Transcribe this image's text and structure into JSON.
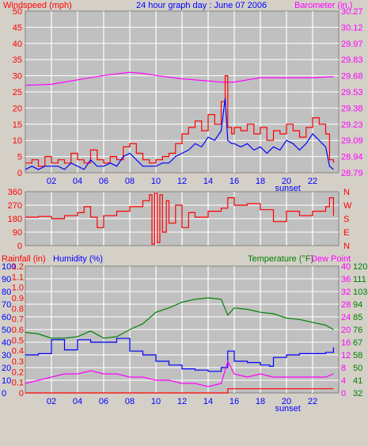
{
  "colors": {
    "plot_bg": "#c0c0c0",
    "frame_bg": "#d4d0c8",
    "grid": "#ffffff",
    "wind": "#ff0000",
    "wind_avg": "#0000ff",
    "barometer": "#ff00ff",
    "direction": "#ff0000",
    "temperature": "#008000",
    "humidity": "#0000ff",
    "dewpoint": "#ff00ff",
    "rainfall": "#ff0000",
    "title": "#0000ff",
    "sunset": "#0000ff"
  },
  "header": {
    "wind_label": "Windspeed (mph)",
    "title": "24 hour graph day : June 07 2006",
    "baro_label": "Barometer (in.)"
  },
  "bottom_header": {
    "rain_label": "Rainfall (in)",
    "humidity_label": "Humidity (%)",
    "temp_label": "Temperature (°F)",
    "dew_label": "Dew Point"
  },
  "x_ticks": [
    "02",
    "04",
    "06",
    "08",
    "10",
    "12",
    "14",
    "16",
    "18",
    "20",
    "22"
  ],
  "sunset_label": "sunset",
  "chart_data": [
    {
      "type": "line",
      "id": "wind-baro",
      "x_unit": "hour",
      "xlim": [
        0,
        24
      ],
      "yleft": {
        "label": "Windspeed (mph)",
        "ticks": [
          "50",
          "45",
          "40",
          "35",
          "30",
          "25",
          "20",
          "15",
          "10",
          "5",
          "0"
        ],
        "ylim": [
          0,
          50
        ]
      },
      "yright": {
        "label": "Barometer (in.)",
        "ticks": [
          "30.27",
          "30.12",
          "29.97",
          "29.83",
          "29.68",
          "29.53",
          "29.38",
          "29.23",
          "29.09",
          "28.94",
          "28.79"
        ],
        "ylim": [
          28.79,
          30.27
        ]
      },
      "series": [
        {
          "name": "Windspeed (mph)",
          "axis": "left",
          "x": [
            0,
            0.5,
            1,
            1.5,
            2,
            2.5,
            3,
            3.5,
            4,
            4.5,
            5,
            5.5,
            6,
            6.5,
            7,
            7.5,
            8,
            8.5,
            9,
            9.5,
            10,
            10.5,
            11,
            11.5,
            12,
            12.5,
            13,
            13.5,
            14,
            14.5,
            15,
            15.3,
            15.5,
            15.8,
            16,
            16.5,
            17,
            17.5,
            18,
            18.5,
            19,
            19.5,
            20,
            20.5,
            21,
            21.5,
            22,
            22.5,
            23,
            23.3,
            23.6
          ],
          "values": [
            3,
            4,
            2,
            5,
            3,
            4,
            3,
            6,
            4,
            3,
            7,
            4,
            3,
            5,
            4,
            8,
            9,
            6,
            4,
            3,
            4,
            5,
            6,
            9,
            12,
            14,
            16,
            13,
            18,
            15,
            22,
            30,
            14,
            12,
            14,
            13,
            15,
            12,
            14,
            10,
            13,
            12,
            15,
            13,
            11,
            14,
            17,
            15,
            12,
            4,
            3
          ]
        },
        {
          "name": "Wind average",
          "axis": "left",
          "x": [
            0,
            0.5,
            1,
            1.5,
            2,
            2.5,
            3,
            3.5,
            4,
            4.5,
            5,
            5.5,
            6,
            6.5,
            7,
            7.5,
            8,
            8.5,
            9,
            9.5,
            10,
            10.5,
            11,
            11.5,
            12,
            12.5,
            13,
            13.5,
            14,
            14.5,
            15,
            15.3,
            15.5,
            15.8,
            16,
            16.5,
            17,
            17.5,
            18,
            18.5,
            19,
            19.5,
            20,
            20.5,
            21,
            21.5,
            22,
            22.5,
            23,
            23.3,
            23.6
          ],
          "values": [
            1,
            2,
            1,
            2,
            2,
            2,
            1,
            3,
            2,
            1,
            4,
            2,
            2,
            3,
            2,
            5,
            6,
            4,
            2,
            2,
            2,
            3,
            3,
            5,
            6,
            7,
            9,
            8,
            11,
            10,
            13,
            23,
            10,
            9,
            9,
            8,
            9,
            7,
            8,
            6,
            8,
            7,
            10,
            9,
            7,
            9,
            12,
            10,
            8,
            2,
            1
          ]
        },
        {
          "name": "Barometer (in.)",
          "axis": "right",
          "x": [
            0,
            2,
            4,
            6,
            8,
            9,
            10,
            12,
            14,
            15,
            16,
            17,
            18,
            20,
            22,
            23.6
          ],
          "values": [
            29.59,
            29.6,
            29.64,
            29.68,
            29.71,
            29.7,
            29.68,
            29.65,
            29.63,
            29.62,
            29.62,
            29.64,
            29.66,
            29.66,
            29.66,
            29.67
          ]
        }
      ]
    },
    {
      "type": "line",
      "id": "direction",
      "x_unit": "hour",
      "xlim": [
        0,
        24
      ],
      "yleft": {
        "ticks": [
          "360",
          "270",
          "180",
          "90",
          "0"
        ],
        "ylim": [
          0,
          360
        ]
      },
      "yright": {
        "ticks": [
          "N",
          "W",
          "S",
          "E",
          "N"
        ]
      },
      "series": [
        {
          "name": "Wind direction",
          "axis": "left",
          "x": [
            0,
            1,
            2,
            3,
            4,
            4.5,
            5,
            5.5,
            6,
            7,
            8,
            9,
            9.5,
            9.7,
            9.9,
            10.1,
            10.3,
            10.5,
            10.8,
            11,
            11.5,
            12,
            12.5,
            13,
            14,
            15,
            15.5,
            16,
            17,
            18,
            19,
            20,
            21,
            22,
            23,
            23.3,
            23.6
          ],
          "values": [
            190,
            195,
            180,
            200,
            220,
            260,
            190,
            120,
            200,
            230,
            260,
            300,
            340,
            10,
            350,
            20,
            340,
            90,
            300,
            150,
            270,
            120,
            220,
            190,
            230,
            250,
            320,
            270,
            280,
            240,
            160,
            230,
            200,
            230,
            260,
            320,
            200
          ]
        }
      ]
    },
    {
      "type": "line",
      "id": "temp-hum",
      "x_unit": "hour",
      "xlim": [
        0,
        24
      ],
      "yleft_rain": {
        "label": "Rainfall (in)",
        "ticks": [
          "1.2",
          "1.1",
          "1.0",
          "0.9",
          "0.8",
          "0.7",
          "0.6",
          "0.5",
          "0.4",
          "0.3",
          "0.2",
          "0.1",
          "0"
        ],
        "ylim": [
          0,
          1.2
        ]
      },
      "yleft_hum": {
        "label": "Humidity (%)",
        "ticks": [
          "100",
          "90",
          "80",
          "70",
          "60",
          "50",
          "40",
          "30",
          "20",
          "10",
          "0"
        ],
        "ylim": [
          0,
          100
        ]
      },
      "yright_dew": {
        "label": "Dew Point",
        "ticks": [
          "40",
          "36",
          "32",
          "28",
          "24",
          "20",
          "16",
          "12",
          "8",
          "4",
          "0"
        ],
        "ylim": [
          0,
          40
        ]
      },
      "yright_temp": {
        "label": "Temperature (°F)",
        "ticks": [
          "120",
          "111",
          "103",
          "94",
          "85",
          "76",
          "67",
          "58",
          "50",
          "41",
          "32"
        ],
        "ylim": [
          32,
          120
        ]
      },
      "series": [
        {
          "name": "Temperature (°F)",
          "axis": "temp",
          "x": [
            0,
            1,
            2,
            3,
            4,
            5,
            6,
            7,
            8,
            9,
            10,
            11,
            12,
            13,
            14,
            15,
            15.5,
            16,
            17,
            18,
            19,
            20,
            21,
            22,
            23,
            23.6
          ],
          "values": [
            74,
            73,
            70,
            70,
            71,
            75,
            70,
            71,
            76,
            80,
            88,
            91,
            95,
            97,
            98,
            97,
            86,
            91,
            90,
            88,
            87,
            84,
            83,
            81,
            79,
            76
          ]
        },
        {
          "name": "Humidity (%)",
          "axis": "humidity",
          "x": [
            0,
            1,
            2,
            3,
            4,
            5,
            6,
            7,
            8,
            9,
            10,
            11,
            12,
            13,
            14,
            15,
            15.5,
            16,
            17,
            18,
            18.7,
            19,
            20,
            21,
            22,
            23,
            23.6
          ],
          "values": [
            30,
            31,
            42,
            34,
            42,
            40,
            40,
            43,
            33,
            30,
            25,
            22,
            19,
            18,
            17,
            20,
            33,
            25,
            24,
            22,
            21,
            28,
            30,
            31,
            31,
            32,
            36
          ]
        },
        {
          "name": "Dew Point",
          "axis": "dew",
          "x": [
            0,
            1,
            2,
            3,
            4,
            5,
            6,
            7,
            8,
            9,
            10,
            11,
            12,
            13,
            14,
            15,
            15.5,
            16,
            17,
            18,
            19,
            20,
            21,
            22,
            23,
            23.6
          ],
          "values": [
            3,
            4,
            5,
            6,
            6,
            7,
            6,
            6,
            5,
            5,
            4,
            4,
            3,
            3,
            2,
            3,
            10,
            6,
            5,
            6,
            5,
            5,
            5,
            5,
            5,
            6
          ]
        },
        {
          "name": "Rainfall (in)",
          "axis": "rain",
          "x": [
            0,
            15.4,
            15.5,
            23.6
          ],
          "values": [
            0,
            0,
            0.04,
            0.04
          ]
        }
      ]
    }
  ]
}
